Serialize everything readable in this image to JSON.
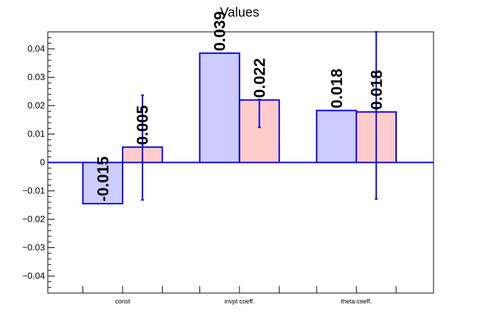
{
  "chart_data": {
    "type": "bar",
    "title": "Values",
    "xlabel": "",
    "ylabel": "",
    "categories": [
      "const",
      "invpt coeff.",
      "theta coeff."
    ],
    "ylim": [
      -0.046,
      0.046
    ],
    "yticks": [
      -0.04,
      -0.03,
      -0.02,
      -0.01,
      0,
      0.01,
      0.02,
      0.03,
      0.04
    ],
    "ytick_labels": [
      "−0.04",
      "−0.03",
      "−0.02",
      "−0.01",
      "0",
      "0.01",
      "0.02",
      "0.03",
      "0.04"
    ],
    "grid": false,
    "legend": "none",
    "series": [
      {
        "values": [
          -0.0145,
          0.0385,
          0.0183
        ],
        "labels": [
          "-0.015",
          "0.039",
          "0.018"
        ],
        "fill": "#ccccff",
        "stroke": "#0000dd"
      },
      {
        "values": [
          0.0054,
          0.022,
          0.0178
        ],
        "labels": [
          "0.005",
          "0.022",
          "0.018"
        ],
        "errors": [
          [
            -0.0132,
            0.0237
          ],
          [
            0.0124,
            0.0222
          ],
          [
            -0.0129,
            0.046
          ]
        ],
        "fill": "#ffcccc",
        "stroke": "#0000dd"
      }
    ]
  }
}
